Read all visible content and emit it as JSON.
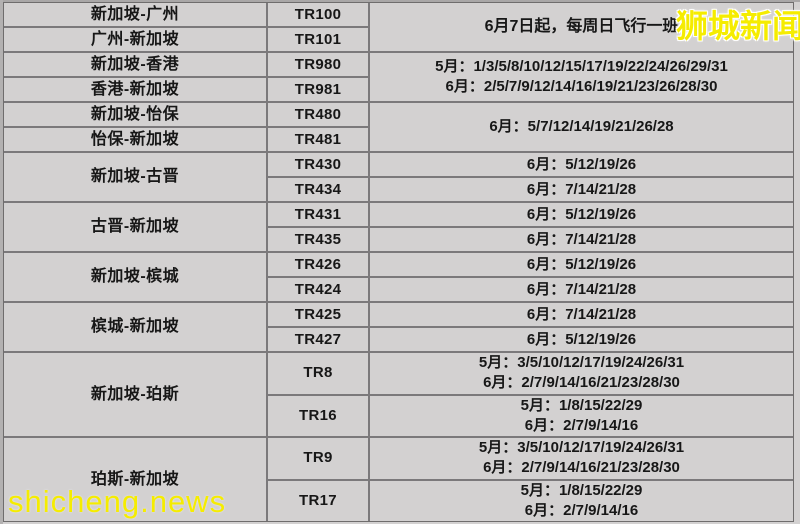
{
  "colors": {
    "cell_background": "#d3d1d1",
    "grid_border": "#7b797b",
    "text": "#171717",
    "watermark_yellow": "#f5ec00"
  },
  "watermarks": {
    "top_right": "狮城新闻",
    "bottom_left": "shicheng.news"
  },
  "table": {
    "routes": [
      {
        "label": "新加坡-广州",
        "row": 1,
        "span": 1
      },
      {
        "label": "广州-新加坡",
        "row": 2,
        "span": 1
      },
      {
        "label": "新加坡-香港",
        "row": 3,
        "span": 1
      },
      {
        "label": "香港-新加坡",
        "row": 4,
        "span": 1
      },
      {
        "label": "新加坡-怡保",
        "row": 5,
        "span": 1
      },
      {
        "label": "怡保-新加坡",
        "row": 6,
        "span": 1
      },
      {
        "label": "新加坡-古晋",
        "row": 7,
        "span": 2
      },
      {
        "label": "古晋-新加坡",
        "row": 9,
        "span": 2
      },
      {
        "label": "新加坡-槟城",
        "row": 11,
        "span": 2
      },
      {
        "label": "槟城-新加坡",
        "row": 13,
        "span": 2
      },
      {
        "label": "新加坡-珀斯",
        "row": 15,
        "span": 2
      },
      {
        "label": "珀斯-新加坡",
        "row": 17,
        "span": 2
      }
    ],
    "flights": [
      "TR100",
      "TR101",
      "TR980",
      "TR981",
      "TR480",
      "TR481",
      "TR430",
      "TR434",
      "TR431",
      "TR435",
      "TR426",
      "TR424",
      "TR425",
      "TR427",
      "TR8",
      "TR16",
      "TR9",
      "TR17"
    ],
    "schedules": [
      {
        "row": 1,
        "span": 2,
        "lines": [
          "6月7日起，每周日飞行一班"
        ]
      },
      {
        "row": 3,
        "span": 2,
        "lines": [
          "5月：1/3/5/8/10/12/15/17/19/22/24/26/29/31",
          "6月：2/5/7/9/12/14/16/19/21/23/26/28/30"
        ]
      },
      {
        "row": 5,
        "span": 2,
        "lines": [
          "6月：5/7/12/14/19/21/26/28"
        ]
      },
      {
        "row": 7,
        "span": 1,
        "lines": [
          "6月：5/12/19/26"
        ]
      },
      {
        "row": 8,
        "span": 1,
        "lines": [
          "6月：7/14/21/28"
        ]
      },
      {
        "row": 9,
        "span": 1,
        "lines": [
          "6月：5/12/19/26"
        ]
      },
      {
        "row": 10,
        "span": 1,
        "lines": [
          "6月：7/14/21/28"
        ]
      },
      {
        "row": 11,
        "span": 1,
        "lines": [
          "6月：5/12/19/26"
        ]
      },
      {
        "row": 12,
        "span": 1,
        "lines": [
          "6月：7/14/21/28"
        ]
      },
      {
        "row": 13,
        "span": 1,
        "lines": [
          "6月：7/14/21/28"
        ]
      },
      {
        "row": 14,
        "span": 1,
        "lines": [
          "6月：5/12/19/26"
        ]
      },
      {
        "row": 15,
        "span": 1,
        "lines": [
          "5月：3/5/10/12/17/19/24/26/31",
          "6月：2/7/9/14/16/21/23/28/30"
        ]
      },
      {
        "row": 16,
        "span": 1,
        "lines": [
          "5月：1/8/15/22/29",
          "6月：2/7/9/14/16"
        ]
      },
      {
        "row": 17,
        "span": 1,
        "lines": [
          "5月：3/5/10/12/17/19/24/26/31",
          "6月：2/7/9/14/16/21/23/28/30"
        ]
      },
      {
        "row": 18,
        "span": 1,
        "lines": [
          "5月：1/8/15/22/29",
          "6月：2/7/9/14/16"
        ]
      }
    ]
  }
}
